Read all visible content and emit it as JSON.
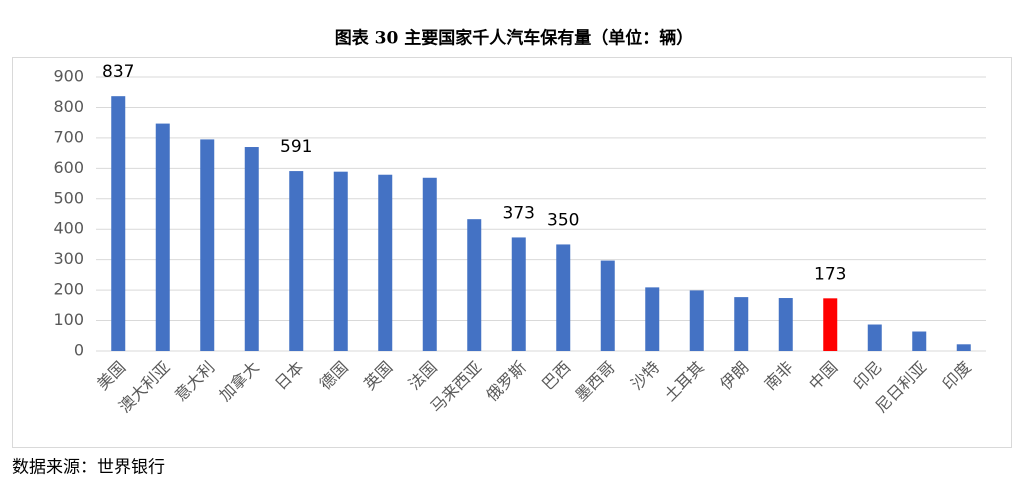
{
  "chart_data": {
    "type": "bar",
    "title": "图表 30 主要国家千人汽车保有量（单位：辆）",
    "source": "数据来源：世界银行",
    "categories": [
      "美国",
      "澳大利亚",
      "意大利",
      "加拿大",
      "日本",
      "德国",
      "英国",
      "法国",
      "马来西亚",
      "俄罗斯",
      "巴西",
      "墨西哥",
      "沙特",
      "土耳其",
      "伊朗",
      "南非",
      "中国",
      "印尼",
      "尼日利亚",
      "印度"
    ],
    "values": [
      837,
      747,
      695,
      670,
      591,
      589,
      579,
      569,
      433,
      373,
      350,
      297,
      209,
      199,
      177,
      174,
      173,
      87,
      64,
      22
    ],
    "value_labels": [
      "837",
      null,
      null,
      null,
      "591",
      null,
      null,
      null,
      null,
      "373",
      "350",
      null,
      null,
      null,
      null,
      null,
      "173",
      null,
      null,
      null
    ],
    "colors": [
      "#4472c4",
      "#4472c4",
      "#4472c4",
      "#4472c4",
      "#4472c4",
      "#4472c4",
      "#4472c4",
      "#4472c4",
      "#4472c4",
      "#4472c4",
      "#4472c4",
      "#4472c4",
      "#4472c4",
      "#4472c4",
      "#4472c4",
      "#4472c4",
      "#ff0000",
      "#4472c4",
      "#4472c4",
      "#4472c4"
    ],
    "ylim": [
      0,
      900
    ],
    "yticks": [
      0,
      100,
      200,
      300,
      400,
      500,
      600,
      700,
      800,
      900
    ],
    "grid": true
  }
}
